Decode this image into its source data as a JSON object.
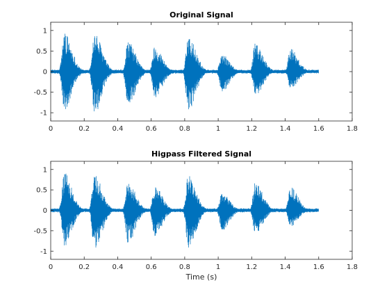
{
  "chart_data": [
    {
      "type": "line",
      "title": "Original Signal",
      "xlabel": "",
      "ylabel": "",
      "xlim": [
        0,
        1.8
      ],
      "ylim": [
        -1.2,
        1.2
      ],
      "xticks": [
        0,
        0.2,
        0.4,
        0.6,
        0.8,
        1,
        1.2,
        1.4,
        1.6,
        1.8
      ],
      "xtick_labels": [
        "0",
        "0.2",
        "0.4",
        "0.6",
        "0.8",
        "1",
        "1.2",
        "1.4",
        "1.6",
        "1.8"
      ],
      "yticks": [
        1,
        0.5,
        0,
        -0.5,
        -1
      ],
      "ytick_labels": [
        "1",
        "0.5",
        "0",
        "-0.5",
        "-1"
      ],
      "grid": false,
      "series": [
        {
          "color": "#0072bd",
          "signal_end": 1.6,
          "bursts": [
            {
              "t": 0.08,
              "max": 0.98,
              "min": -0.93
            },
            {
              "t": 0.26,
              "max": 0.95,
              "min": -1.03
            },
            {
              "t": 0.46,
              "max": 0.75,
              "min": -0.82
            },
            {
              "t": 0.62,
              "max": 0.62,
              "min": -0.63
            },
            {
              "t": 0.82,
              "max": 0.9,
              "min": -0.97
            },
            {
              "t": 1.02,
              "max": 0.43,
              "min": -0.5
            },
            {
              "t": 1.22,
              "max": 0.68,
              "min": -0.6
            },
            {
              "t": 1.43,
              "max": 0.58,
              "min": -0.42
            }
          ]
        }
      ]
    },
    {
      "type": "line",
      "title": "Higpass Filtered Signal",
      "xlabel": "Time (s)",
      "ylabel": "",
      "xlim": [
        0,
        1.8
      ],
      "ylim": [
        -1.2,
        1.2
      ],
      "xticks": [
        0,
        0.2,
        0.4,
        0.6,
        0.8,
        1,
        1.2,
        1.4,
        1.6,
        1.8
      ],
      "xtick_labels": [
        "0",
        "0.2",
        "0.4",
        "0.6",
        "0.8",
        "1",
        "1.2",
        "1.4",
        "1.6",
        "1.8"
      ],
      "yticks": [
        1,
        0.5,
        0,
        -0.5,
        -1
      ],
      "ytick_labels": [
        "1",
        "0.5",
        "0",
        "-0.5",
        "-1"
      ],
      "grid": false,
      "series": [
        {
          "color": "#0072bd",
          "signal_end": 1.6,
          "bursts": [
            {
              "t": 0.08,
              "max": 0.93,
              "min": -0.88
            },
            {
              "t": 0.26,
              "max": 0.92,
              "min": -1.0
            },
            {
              "t": 0.46,
              "max": 0.72,
              "min": -0.8
            },
            {
              "t": 0.62,
              "max": 0.6,
              "min": -0.63
            },
            {
              "t": 0.82,
              "max": 0.88,
              "min": -0.93
            },
            {
              "t": 1.02,
              "max": 0.43,
              "min": -0.5
            },
            {
              "t": 1.22,
              "max": 0.68,
              "min": -0.58
            },
            {
              "t": 1.43,
              "max": 0.58,
              "min": -0.4
            }
          ]
        }
      ]
    }
  ]
}
